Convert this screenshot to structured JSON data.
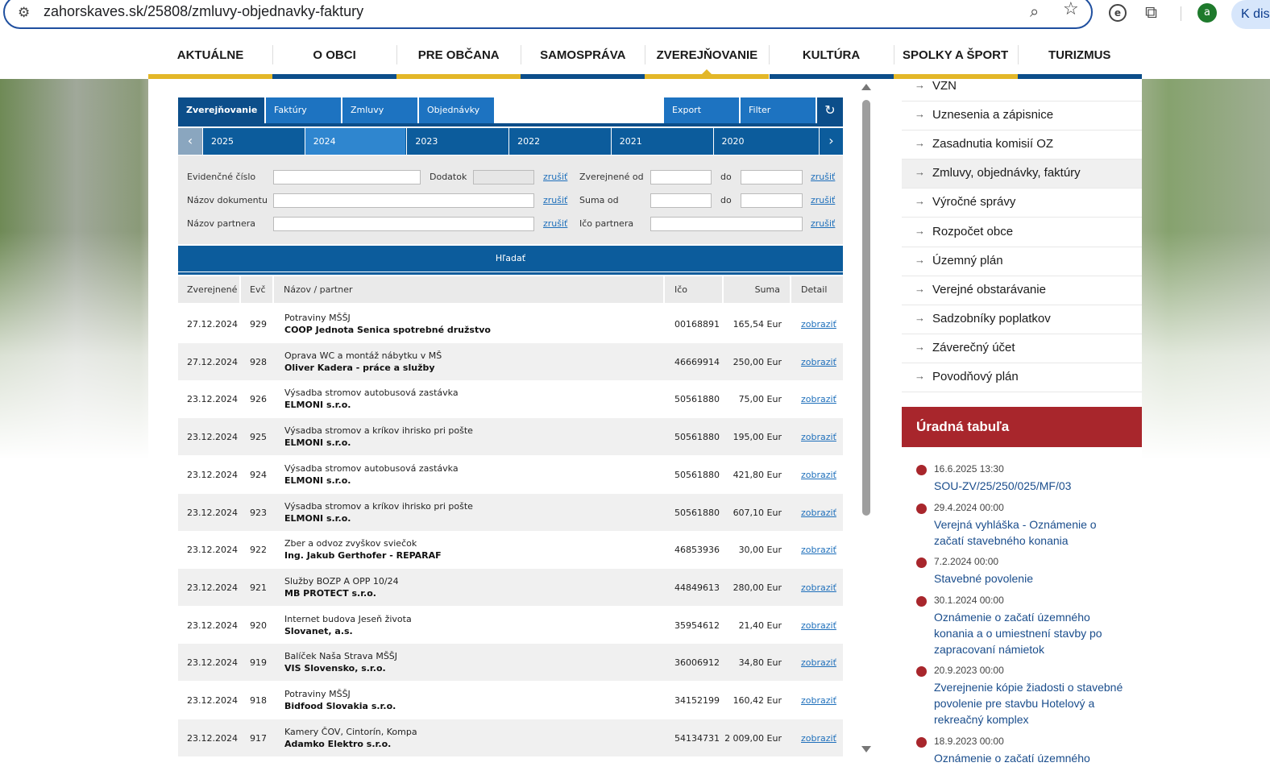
{
  "browser": {
    "url": "zahorskaves.sk/25808/zmluvy-objednavky-faktury",
    "avatar_letter": "a",
    "side_button": "K dis",
    "icons": [
      "tune-icon",
      "zoom-icon",
      "star-icon",
      "extension-icon",
      "puzzle-icon"
    ]
  },
  "nav": {
    "items": [
      {
        "label": "AKTUÁLNE",
        "color": "#e3b728"
      },
      {
        "label": "O OBCI",
        "color": "#0c4e8a"
      },
      {
        "label": "PRE OBČANA",
        "color": "#e3b728"
      },
      {
        "label": "SAMOSPRÁVA",
        "color": "#0c4e8a"
      },
      {
        "label": "ZVEREJŇOVANIE",
        "color": "#e3b728"
      },
      {
        "label": "KULTÚRA",
        "color": "#0c4e8a"
      },
      {
        "label": "SPOLKY A ŠPORT",
        "color": "#e3b728"
      },
      {
        "label": "TURIZMUS",
        "color": "#0c4e8a"
      }
    ],
    "active_index": 4
  },
  "tabs": {
    "zverejnovanie": "Zverejňovanie",
    "faktury": "Faktúry",
    "zmluvy": "Zmluvy",
    "objednavky": "Objednávky",
    "export": "Export",
    "filter": "Filter",
    "refresh": "↻"
  },
  "years": [
    "2025",
    "2024",
    "2023",
    "2022",
    "2021",
    "2020"
  ],
  "year_active": "2024",
  "filters": {
    "evidencne_cislo": "Evidenčné číslo",
    "dodatok": "Dodatok",
    "zverejnene_od": "Zverejnené od",
    "do": "do",
    "nazov_dokumentu": "Názov dokumentu",
    "suma_od": "Suma od",
    "nazov_partnera": "Názov partnera",
    "ico_partnera": "Ičo partnera",
    "zrusit": "zrušiť",
    "search": "Hľadať"
  },
  "table": {
    "headers": {
      "zverejnene": "Zverejnené",
      "evc": "Evč",
      "nazov": "Názov / partner",
      "ico": "Ičo",
      "suma": "Suma",
      "detail": "Detail"
    },
    "rows": [
      {
        "date": "27.12.2024",
        "evc": "929",
        "name": "Potraviny MŠŠJ",
        "partner": "COOP Jednota Senica spotrebné družstvo",
        "ico": "00168891",
        "sum": "165,54 Eur",
        "detail": "zobraziť"
      },
      {
        "date": "27.12.2024",
        "evc": "928",
        "name": "Oprava WC a montáž nábytku v MŠ",
        "partner": "Oliver Kadera - práce a služby",
        "ico": "46669914",
        "sum": "250,00 Eur",
        "detail": "zobraziť"
      },
      {
        "date": "23.12.2024",
        "evc": "926",
        "name": "Výsadba stromov autobusová zastávka",
        "partner": "ELMONI s.r.o.",
        "ico": "50561880",
        "sum": "75,00 Eur",
        "detail": "zobraziť"
      },
      {
        "date": "23.12.2024",
        "evc": "925",
        "name": "Výsadba stromov a kríkov ihrisko pri pošte",
        "partner": "ELMONI s.r.o.",
        "ico": "50561880",
        "sum": "195,00 Eur",
        "detail": "zobraziť"
      },
      {
        "date": "23.12.2024",
        "evc": "924",
        "name": "Výsadba stromov autobusová zastávka",
        "partner": "ELMONI s.r.o.",
        "ico": "50561880",
        "sum": "421,80 Eur",
        "detail": "zobraziť"
      },
      {
        "date": "23.12.2024",
        "evc": "923",
        "name": "Výsadba stromov a kríkov ihrisko pri pošte",
        "partner": "ELMONI s.r.o.",
        "ico": "50561880",
        "sum": "607,10 Eur",
        "detail": "zobraziť"
      },
      {
        "date": "23.12.2024",
        "evc": "922",
        "name": "Zber a odvoz zvyškov sviečok",
        "partner": "Ing. Jakub Gerthofer - REPARAF",
        "ico": "46853936",
        "sum": "30,00 Eur",
        "detail": "zobraziť"
      },
      {
        "date": "23.12.2024",
        "evc": "921",
        "name": "Služby BOZP A OPP 10/24",
        "partner": "MB PROTECT s.r.o.",
        "ico": "44849613",
        "sum": "280,00 Eur",
        "detail": "zobraziť"
      },
      {
        "date": "23.12.2024",
        "evc": "920",
        "name": "Internet budova Jeseň života",
        "partner": "Slovanet, a.s.",
        "ico": "35954612",
        "sum": "21,40 Eur",
        "detail": "zobraziť"
      },
      {
        "date": "23.12.2024",
        "evc": "919",
        "name": "Balíček Naša Strava MŠŠJ",
        "partner": "VIS Slovensko, s.r.o.",
        "ico": "36006912",
        "sum": "34,80 Eur",
        "detail": "zobraziť"
      },
      {
        "date": "23.12.2024",
        "evc": "918",
        "name": "Potraviny MŠŠJ",
        "partner": "Bidfood Slovakia s.r.o.",
        "ico": "34152199",
        "sum": "160,42 Eur",
        "detail": "zobraziť"
      },
      {
        "date": "23.12.2024",
        "evc": "917",
        "name": "Kamery ČOV, Cintorín, Kompa",
        "partner": "Adamko Elektro s.r.o.",
        "ico": "54134731",
        "sum": "2 009,00 Eur",
        "detail": "zobraziť"
      }
    ]
  },
  "sidebar": {
    "items": [
      "VZN",
      "Uznesenia a zápisnice",
      "Zasadnutia komisií OZ",
      "Zmluvy, objednávky, faktúry",
      "Výročné správy",
      "Rozpočet obce",
      "Územný plán",
      "Verejné obstarávanie",
      "Sadzobníky poplatkov",
      "Záverečný účet",
      "Povodňový plán"
    ],
    "active_index": 3
  },
  "board": {
    "title": "Úradná tabuľa",
    "items": [
      {
        "date": "16.6.2025 13:30",
        "title": "SOU-ZV/25/250/025/MF/03"
      },
      {
        "date": "29.4.2024 00:00",
        "title": "Verejná vyhláška - Oznámenie o začatí stavebného konania"
      },
      {
        "date": "7.2.2024 00:00",
        "title": "Stavebné povolenie"
      },
      {
        "date": "30.1.2024 00:00",
        "title": "Oznámenie o začatí územného konania a o umiestnení stavby po zapracovaní námietok"
      },
      {
        "date": "20.9.2023 00:00",
        "title": "Zverejnenie kópie žiadosti o stavebné povolenie pre stavbu Hotelový a rekreačný komplex"
      },
      {
        "date": "18.9.2023 00:00",
        "title": "Oznámenie o začatí územného"
      }
    ]
  }
}
